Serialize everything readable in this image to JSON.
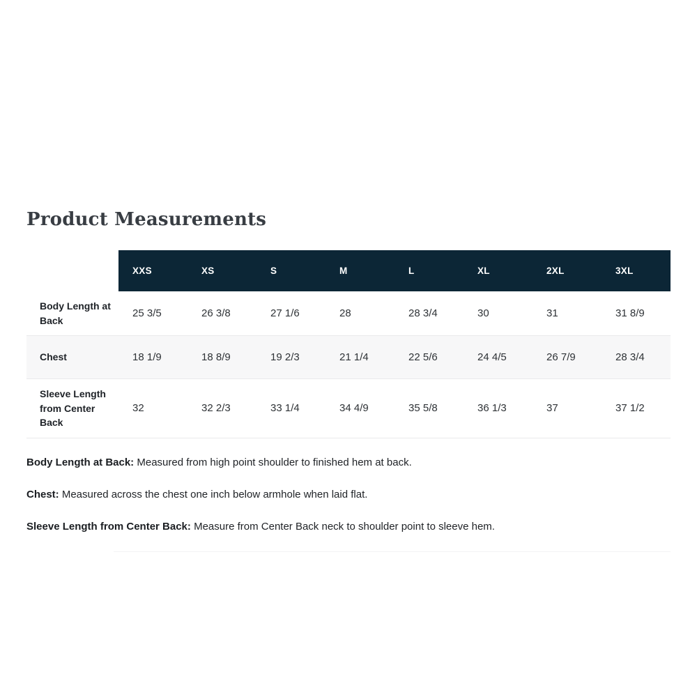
{
  "page": {
    "title": "Product Measurements"
  },
  "table": {
    "sizes": [
      "XXS",
      "XS",
      "S",
      "M",
      "L",
      "XL",
      "2XL",
      "3XL"
    ],
    "rows": [
      {
        "label": "Body Length at Back",
        "values": [
          "25 3/5",
          "26 3/8",
          "27 1/6",
          "28",
          "28 3/4",
          "30",
          "31",
          "31 8/9"
        ]
      },
      {
        "label": "Chest",
        "values": [
          "18 1/9",
          "18 8/9",
          "19 2/3",
          "21 1/4",
          "22 5/6",
          "24 4/5",
          "26 7/9",
          "28 3/4"
        ]
      },
      {
        "label": "Sleeve Length from Center Back",
        "values": [
          "32",
          "32 2/3",
          "33 1/4",
          "34 4/9",
          "35 5/8",
          "36 1/3",
          "37",
          "37 1/2"
        ]
      }
    ]
  },
  "footnotes": [
    {
      "term": "Body Length at Back:",
      "description": "Measured from high point shoulder to finished hem at back."
    },
    {
      "term": "Chest:",
      "description": "Measured across the chest one inch below armhole when laid flat."
    },
    {
      "term": "Sleeve Length from Center Back:",
      "description": "Measure from Center Back neck to shoulder point to sleeve hem."
    }
  ],
  "colors": {
    "header_bg": "#0c2636",
    "header_text": "#ffffff",
    "zebra_bg": "#f7f7f8",
    "row_border": "#e9e9eb",
    "title_text": "#383d43"
  }
}
